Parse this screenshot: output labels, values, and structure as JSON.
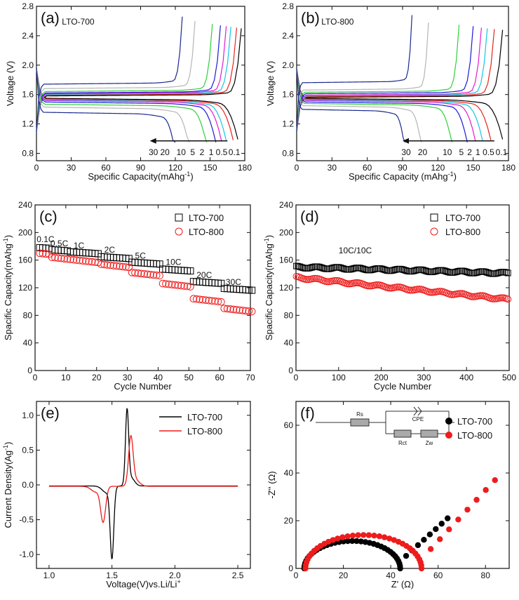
{
  "chart_data": [
    {
      "id": "a",
      "type": "line",
      "panel_label": "(a)",
      "annotation": "LTO-700",
      "xlabel": "Specific Capacity(mAhg",
      "xlabel_sup": "-1",
      "xlabel_end": ")",
      "ylabel": "Voltage (V)",
      "xlim": [
        0,
        180
      ],
      "ylim": [
        0.7,
        2.8
      ],
      "xticks": [
        0,
        30,
        60,
        90,
        120,
        150,
        180
      ],
      "yticks": [
        0.8,
        1.2,
        1.6,
        2.0,
        2.4,
        2.8
      ],
      "rate_labels": [
        {
          "text": "30",
          "x": 101
        },
        {
          "text": "20",
          "x": 111
        },
        {
          "text": "10",
          "x": 125
        },
        {
          "text": "5",
          "x": 135
        },
        {
          "text": "2",
          "x": 143
        },
        {
          "text": "1",
          "x": 151
        },
        {
          "text": "0.5",
          "x": 160
        },
        {
          "text": "0.1",
          "x": 171
        }
      ],
      "rate_arrow": {
        "from": 165,
        "to": 98,
        "y": 0.97
      },
      "series": [
        {
          "rate": "0.1",
          "color": "#000000",
          "charge": {
            "cap": 177,
            "v0": 1.58
          },
          "discharge": {
            "cap": 174,
            "v0": 1.55
          }
        },
        {
          "rate": "0.2",
          "color": "#e8231b",
          "charge": {
            "cap": 173,
            "v0": 1.59
          },
          "discharge": {
            "cap": 170,
            "v0": 1.54
          }
        },
        {
          "rate": "0.5",
          "color": "#17c4e6",
          "charge": {
            "cap": 168,
            "v0": 1.6
          },
          "discharge": {
            "cap": 164,
            "v0": 1.53
          }
        },
        {
          "rate": "1",
          "color": "#e21bd3",
          "charge": {
            "cap": 164,
            "v0": 1.61
          },
          "discharge": {
            "cap": 160,
            "v0": 1.52
          }
        },
        {
          "rate": "2",
          "color": "#1b1bd6",
          "charge": {
            "cap": 159,
            "v0": 1.62
          },
          "discharge": {
            "cap": 155,
            "v0": 1.5
          }
        },
        {
          "rate": "5",
          "color": "#2fcf3a",
          "charge": {
            "cap": 152,
            "v0": 1.64
          },
          "discharge": {
            "cap": 147,
            "v0": 1.47
          }
        },
        {
          "rate": "10",
          "color": "#b5b5b5",
          "charge": {
            "cap": 137,
            "v0": 1.68
          },
          "discharge": {
            "cap": 132,
            "v0": 1.43
          }
        },
        {
          "rate": "30",
          "color": "#1b2a8f",
          "charge": {
            "cap": 126,
            "v0": 1.74
          },
          "discharge": {
            "cap": 120,
            "v0": 1.36
          }
        }
      ]
    },
    {
      "id": "b",
      "type": "line",
      "panel_label": "(b)",
      "annotation": "LTO-800",
      "xlabel": "Specific Capacity (mAhg",
      "xlabel_sup": "-1",
      "xlabel_end": ")",
      "ylabel": "Voltage (V)",
      "xlim": [
        0,
        180
      ],
      "ylim": [
        0.7,
        2.8
      ],
      "xticks": [
        0,
        30,
        60,
        90,
        120,
        150,
        180
      ],
      "yticks": [
        0.8,
        1.2,
        1.6,
        2.0,
        2.4,
        2.8
      ],
      "rate_labels": [
        {
          "text": "30",
          "x": 93
        },
        {
          "text": "20",
          "x": 107
        },
        {
          "text": "10",
          "x": 128
        },
        {
          "text": "5",
          "x": 140
        },
        {
          "text": "2",
          "x": 147
        },
        {
          "text": "1",
          "x": 154
        },
        {
          "text": "0.5",
          "x": 163
        },
        {
          "text": "0.1",
          "x": 174
        }
      ],
      "rate_arrow": {
        "from": 168,
        "to": 90,
        "y": 0.97
      },
      "series": [
        {
          "rate": "0.1",
          "color": "#000000",
          "charge": {
            "cap": 175,
            "v0": 1.56
          },
          "discharge": {
            "cap": 175,
            "v0": 1.55
          }
        },
        {
          "rate": "0.2",
          "color": "#e8231b",
          "charge": {
            "cap": 168,
            "v0": 1.57
          },
          "discharge": {
            "cap": 165,
            "v0": 1.54
          }
        },
        {
          "rate": "0.5",
          "color": "#17c4e6",
          "charge": {
            "cap": 162,
            "v0": 1.58
          },
          "discharge": {
            "cap": 158,
            "v0": 1.53
          }
        },
        {
          "rate": "1",
          "color": "#e21bd3",
          "charge": {
            "cap": 157,
            "v0": 1.59
          },
          "discharge": {
            "cap": 152,
            "v0": 1.52
          }
        },
        {
          "rate": "2",
          "color": "#1b1bd6",
          "charge": {
            "cap": 150,
            "v0": 1.61
          },
          "discharge": {
            "cap": 145,
            "v0": 1.5
          }
        },
        {
          "rate": "5",
          "color": "#2fcf3a",
          "charge": {
            "cap": 138,
            "v0": 1.63
          },
          "discharge": {
            "cap": 132,
            "v0": 1.48
          }
        },
        {
          "rate": "10",
          "color": "#b5b5b5",
          "charge": {
            "cap": 112,
            "v0": 1.66
          },
          "discharge": {
            "cap": 106,
            "v0": 1.45
          }
        },
        {
          "rate": "30",
          "color": "#1b2a8f",
          "charge": {
            "cap": 98,
            "v0": 1.76
          },
          "discharge": {
            "cap": 92,
            "v0": 1.4
          }
        }
      ]
    },
    {
      "id": "c",
      "type": "scatter",
      "panel_label": "(c)",
      "xlabel": "Cycle Number",
      "ylabel": "Spacific Capacity(mAhg",
      "ylabel_sup": "-1",
      "ylabel_end": ")",
      "xlim": [
        0,
        70
      ],
      "ylim": [
        0,
        240
      ],
      "xticks": [
        0,
        10,
        20,
        30,
        40,
        50,
        60,
        70
      ],
      "yticks": [
        0,
        40,
        80,
        120,
        160,
        200,
        240
      ],
      "rate_annotations": [
        {
          "text": "0.1C",
          "x": 0.5,
          "y": 186
        },
        {
          "text": "0.5C",
          "x": 5,
          "y": 180
        },
        {
          "text": "1C",
          "x": 12.5,
          "y": 177
        },
        {
          "text": "2C",
          "x": 22.5,
          "y": 171
        },
        {
          "text": "5C",
          "x": 32.5,
          "y": 162
        },
        {
          "text": "10C",
          "x": 42.5,
          "y": 153
        },
        {
          "text": "20C",
          "x": 52.5,
          "y": 134
        },
        {
          "text": "30C",
          "x": 62,
          "y": 124
        }
      ],
      "legend": {
        "placement": "top-right"
      },
      "series": [
        {
          "name": "LTO-700",
          "marker": "square-open",
          "color": "#000000",
          "segments": [
            {
              "from": 1,
              "to": 4,
              "y": 178
            },
            {
              "from": 5,
              "to": 10,
              "y": 175
            },
            {
              "from": 11,
              "to": 20,
              "y": 172
            },
            {
              "from": 21,
              "to": 30,
              "y": 165
            },
            {
              "from": 31,
              "to": 40,
              "y": 157
            },
            {
              "from": 41,
              "to": 50,
              "y": 147
            },
            {
              "from": 51,
              "to": 60,
              "y": 129
            },
            {
              "from": 61,
              "to": 70,
              "y": 119
            }
          ]
        },
        {
          "name": "LTO-800",
          "marker": "circle-open",
          "color": "#ee1c1c",
          "segments": [
            {
              "from": 1,
              "to": 4,
              "y": 170
            },
            {
              "from": 5,
              "to": 10,
              "y": 164
            },
            {
              "from": 11,
              "to": 20,
              "y": 161
            },
            {
              "from": 21,
              "to": 30,
              "y": 154
            },
            {
              "from": 31,
              "to": 40,
              "y": 142
            },
            {
              "from": 41,
              "to": 50,
              "y": 126
            },
            {
              "from": 51,
              "to": 60,
              "y": 104
            },
            {
              "from": 61,
              "to": 70,
              "y": 90
            }
          ]
        }
      ]
    },
    {
      "id": "d",
      "type": "scatter",
      "panel_label": "(d)",
      "annotation": "10C/10C",
      "xlabel": "Cycle Number",
      "ylabel": "Spacific Capacity(mAhg",
      "ylabel_sup": "-1",
      "ylabel_end": ")",
      "xlim": [
        0,
        500
      ],
      "ylim": [
        0,
        240
      ],
      "xticks": [
        0,
        100,
        200,
        300,
        400,
        500
      ],
      "yticks": [
        0,
        40,
        80,
        120,
        160,
        200,
        240
      ],
      "legend": {
        "placement": "top-right"
      },
      "series": [
        {
          "name": "LTO-700",
          "marker": "square-open",
          "color": "#000000",
          "start": 150,
          "end": 141,
          "n": 500
        },
        {
          "name": "LTO-800",
          "marker": "circle-open",
          "color": "#ee1c1c",
          "start": 135,
          "end": 103,
          "n": 500
        }
      ]
    },
    {
      "id": "e",
      "type": "line",
      "panel_label": "(e)",
      "xlabel": "Voltage(V)vs.Li/Li",
      "xlabel_sup": "+",
      "ylabel": "Current Density(Ag",
      "ylabel_sup": "-1",
      "ylabel_end": ")",
      "xlim": [
        0.9,
        2.6
      ],
      "ylim": [
        -1.2,
        1.2
      ],
      "xticks": [
        1.0,
        1.5,
        2.0,
        2.5
      ],
      "yticks": [
        -1.0,
        -0.5,
        0.0,
        0.5,
        1.0
      ],
      "legend": {
        "placement": "top-right"
      },
      "series": [
        {
          "name": "LTO-700",
          "color": "#000000",
          "x_start": 1.0,
          "x_end": 2.5,
          "base": -0.015,
          "peaks": [
            {
              "x": 1.62,
              "h": 1.05,
              "w": 0.018
            },
            {
              "x": 1.65,
              "h": 0.12,
              "w": 0.04
            },
            {
              "x": 1.5,
              "h": -1.0,
              "w": 0.02
            },
            {
              "x": 1.46,
              "h": -0.1,
              "w": 0.05
            }
          ]
        },
        {
          "name": "LTO-800",
          "color": "#ee1c1c",
          "x_start": 1.0,
          "x_end": 2.5,
          "base": -0.02,
          "peaks": [
            {
              "x": 1.65,
              "h": 0.66,
              "w": 0.025
            },
            {
              "x": 1.68,
              "h": 0.1,
              "w": 0.05
            },
            {
              "x": 1.43,
              "h": -0.5,
              "w": 0.028
            },
            {
              "x": 1.37,
              "h": -0.08,
              "w": 0.05
            }
          ]
        }
      ]
    },
    {
      "id": "f",
      "type": "scatter",
      "panel_label": "(f)",
      "xlabel": "Z' (Ω)",
      "ylabel": "-Z'' (Ω)",
      "xlim": [
        0,
        90
      ],
      "ylim": [
        0,
        70
      ],
      "xticks": [
        0,
        20,
        40,
        60,
        80
      ],
      "yticks": [
        0,
        20,
        40,
        60
      ],
      "legend": {
        "placement": "top-right"
      },
      "circuit": {
        "labels": [
          "Rs",
          "CPE",
          "Rct",
          "Zw"
        ]
      },
      "series": [
        {
          "name": "LTO-700",
          "marker": "circle-filled",
          "color": "#000000",
          "arc": {
            "r0": 3.5,
            "r1": 44,
            "height": 11.5
          },
          "tail": {
            "x0": 44,
            "y0": 3,
            "x1": 64,
            "y1": 21
          }
        },
        {
          "name": "LTO-800",
          "marker": "circle-filled",
          "color": "#ee1c1c",
          "arc": {
            "r0": 4,
            "r1": 53,
            "height": 14
          },
          "tail": {
            "x0": 53,
            "y0": 4,
            "x1": 84,
            "y1": 37
          }
        }
      ]
    }
  ]
}
